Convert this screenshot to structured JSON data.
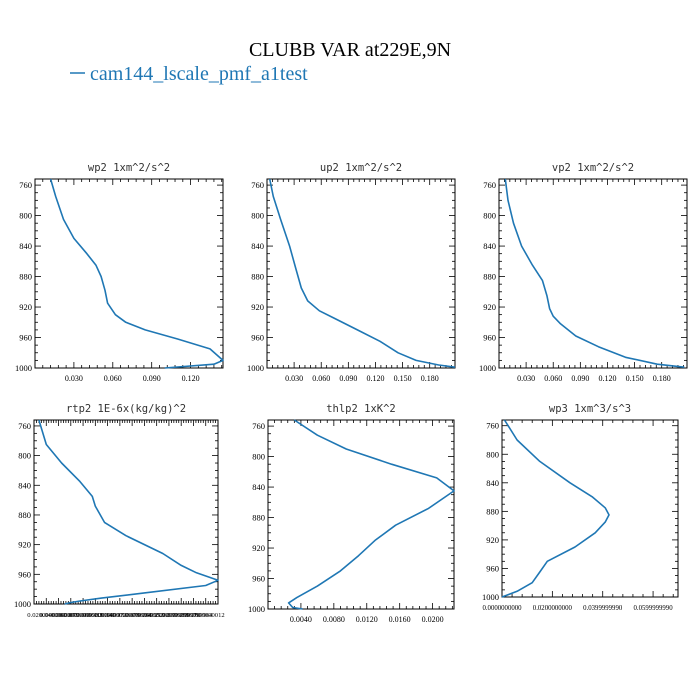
{
  "figure": {
    "title": "CLUBB VAR at229E,9N",
    "legend": {
      "entries": [
        {
          "label": "cam144_lscale_pmf_a1test",
          "color": "#1f77b4"
        }
      ]
    }
  },
  "chart_data": [
    {
      "type": "line",
      "title": "wp2   1xm^2/s^2",
      "xlim": [
        0.0,
        0.145
      ],
      "ylim": [
        1000,
        752
      ],
      "xticks": [
        0.03,
        0.06,
        0.09,
        0.12
      ],
      "xtick_labels": [
        "0.030",
        "0.060",
        "0.090",
        "0.120"
      ],
      "yticks": [
        760,
        800,
        840,
        880,
        920,
        960,
        1000
      ],
      "series": [
        {
          "color": "#1f77b4",
          "x": [
            0.012,
            0.016,
            0.022,
            0.03,
            0.04,
            0.047,
            0.051,
            0.054,
            0.056,
            0.062,
            0.07,
            0.085,
            0.11,
            0.135,
            0.145,
            0.138,
            0.1
          ],
          "y": [
            752,
            775,
            805,
            830,
            850,
            865,
            880,
            898,
            915,
            930,
            940,
            950,
            962,
            975,
            990,
            995,
            1000
          ]
        }
      ]
    },
    {
      "type": "line",
      "title": "up2   1xm^2/s^2",
      "xlim": [
        0.0,
        0.208
      ],
      "ylim": [
        1000,
        752
      ],
      "xticks": [
        0.03,
        0.06,
        0.09,
        0.12,
        0.15,
        0.18
      ],
      "xtick_labels": [
        "0.030",
        "0.060",
        "0.090",
        "0.120",
        "0.150",
        "0.180"
      ],
      "yticks": [
        760,
        800,
        840,
        880,
        920,
        960,
        1000
      ],
      "series": [
        {
          "color": "#1f77b4",
          "x": [
            0.003,
            0.007,
            0.015,
            0.025,
            0.032,
            0.038,
            0.045,
            0.058,
            0.075,
            0.1,
            0.125,
            0.145,
            0.165,
            0.19,
            0.208
          ],
          "y": [
            752,
            775,
            805,
            840,
            870,
            895,
            912,
            925,
            935,
            950,
            965,
            980,
            990,
            996,
            999
          ]
        }
      ]
    },
    {
      "type": "line",
      "title": "vp2   1xm^2/s^2",
      "xlim": [
        0.0,
        0.208
      ],
      "ylim": [
        1000,
        752
      ],
      "xticks": [
        0.03,
        0.06,
        0.09,
        0.12,
        0.15,
        0.18
      ],
      "xtick_labels": [
        "0.030",
        "0.060",
        "0.090",
        "0.120",
        "0.150",
        "0.180"
      ],
      "yticks": [
        760,
        800,
        840,
        880,
        920,
        960,
        1000
      ],
      "series": [
        {
          "color": "#1f77b4",
          "x": [
            0.007,
            0.01,
            0.016,
            0.025,
            0.037,
            0.048,
            0.053,
            0.056,
            0.06,
            0.068,
            0.085,
            0.11,
            0.14,
            0.175,
            0.205
          ],
          "y": [
            752,
            780,
            810,
            840,
            865,
            885,
            905,
            922,
            932,
            942,
            958,
            972,
            986,
            995,
            999
          ]
        }
      ]
    },
    {
      "type": "line",
      "title": "rtp2   1E-6x(kg/kg)^2",
      "xlim": [
        0.0,
        0.3
      ],
      "ylim": [
        1000,
        752
      ],
      "xticks": [
        0.02,
        0.04,
        0.06,
        0.08,
        0.1,
        0.12,
        0.14,
        0.16,
        0.18,
        0.2,
        0.22,
        0.24,
        0.26,
        0.28
      ],
      "xtick_labels": [
        "0.0200000000",
        "0.0400000000",
        "0.0600000000",
        "0.0799999982",
        "0.1000000000",
        "0.1199999973",
        "0.1400000006",
        "0.1599999964",
        "0.1799999952",
        "0.2000000000",
        "0.2199999988",
        "0.2399999976",
        "0.2599999964",
        "0.2800000012"
      ],
      "yticks": [
        760,
        800,
        840,
        880,
        920,
        960,
        1000
      ],
      "series": [
        {
          "color": "#1f77b4",
          "x": [
            0.008,
            0.02,
            0.045,
            0.075,
            0.095,
            0.1,
            0.115,
            0.15,
            0.21,
            0.24,
            0.265,
            0.3,
            0.28,
            0.18,
            0.11,
            0.075,
            0.06,
            0.05
          ],
          "y": [
            752,
            785,
            810,
            835,
            855,
            868,
            890,
            908,
            932,
            948,
            958,
            968,
            975,
            985,
            992,
            996,
            998,
            1000
          ]
        }
      ]
    },
    {
      "type": "line",
      "title": "thlp2   1xK^2",
      "xlim": [
        0.0,
        0.0226
      ],
      "ylim": [
        1000,
        752
      ],
      "xticks": [
        0.004,
        0.008,
        0.012,
        0.016,
        0.02
      ],
      "xtick_labels": [
        "0.0040",
        "0.0080",
        "0.0120",
        "0.0160",
        "0.0200"
      ],
      "yticks": [
        760,
        800,
        840,
        880,
        920,
        960,
        1000
      ],
      "series": [
        {
          "color": "#1f77b4",
          "x": [
            0.0032,
            0.006,
            0.0095,
            0.015,
            0.0205,
            0.0226,
            0.0195,
            0.0155,
            0.013,
            0.011,
            0.0088,
            0.006,
            0.0035,
            0.0025,
            0.003,
            0.0042
          ],
          "y": [
            752,
            772,
            790,
            810,
            828,
            845,
            868,
            890,
            910,
            930,
            950,
            970,
            985,
            992,
            998,
            1000
          ]
        }
      ]
    },
    {
      "type": "line",
      "title": "wp3   1xm^3/s^3",
      "xlim": [
        0.0,
        0.0699
      ],
      "ylim": [
        1000,
        752
      ],
      "xticks": [
        0.0,
        0.02,
        0.04,
        0.06
      ],
      "xtick_labels": [
        "0.0000000000",
        "0.0200000000",
        "0.0399999990",
        "0.0599999990"
      ],
      "yticks": [
        760,
        800,
        840,
        880,
        920,
        960,
        1000
      ],
      "series": [
        {
          "color": "#1f77b4",
          "x": [
            0.001,
            0.006,
            0.015,
            0.027,
            0.036,
            0.041,
            0.0425,
            0.041,
            0.037,
            0.029,
            0.018,
            0.015,
            0.012,
            0.006,
            0.0
          ],
          "y": [
            752,
            780,
            810,
            840,
            860,
            875,
            885,
            895,
            910,
            930,
            950,
            965,
            980,
            992,
            1000
          ]
        }
      ]
    }
  ]
}
